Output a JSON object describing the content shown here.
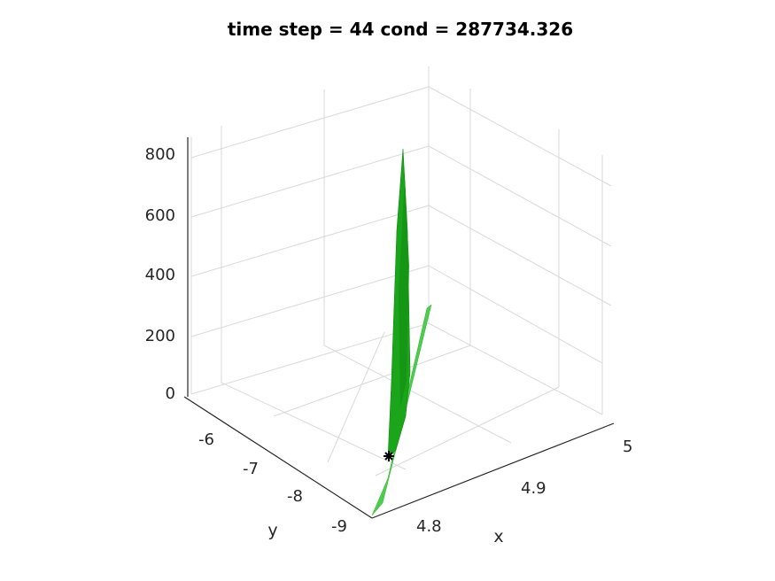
{
  "chart_data": {
    "type": "surface3d",
    "title": "time step = 44 cond = 287734.326",
    "xlabel": "x",
    "ylabel": "y",
    "zlabel": "",
    "xlim": [
      4.75,
      5.0
    ],
    "ylim": [
      -9.2,
      -5.5
    ],
    "zlim": [
      0,
      860
    ],
    "x_ticks": [
      "4.8",
      "4.9",
      "5"
    ],
    "y_ticks": [
      "-6",
      "-7",
      "-8",
      "-9"
    ],
    "z_ticks": [
      "0",
      "200",
      "400",
      "600",
      "800"
    ],
    "grid": true,
    "surface_color": "#1aa51a",
    "surface_light_color": "#4ccd4c",
    "marker_color": "#000000",
    "marker": {
      "x": 4.8,
      "y": -8.2,
      "z": 0
    },
    "spike": {
      "x": 4.8,
      "y": -7.0,
      "z_peak": 830
    },
    "ridge": {
      "x_range": [
        4.75,
        4.8
      ],
      "y_range": [
        -9.2,
        -7.3
      ],
      "z_end": 300
    }
  }
}
